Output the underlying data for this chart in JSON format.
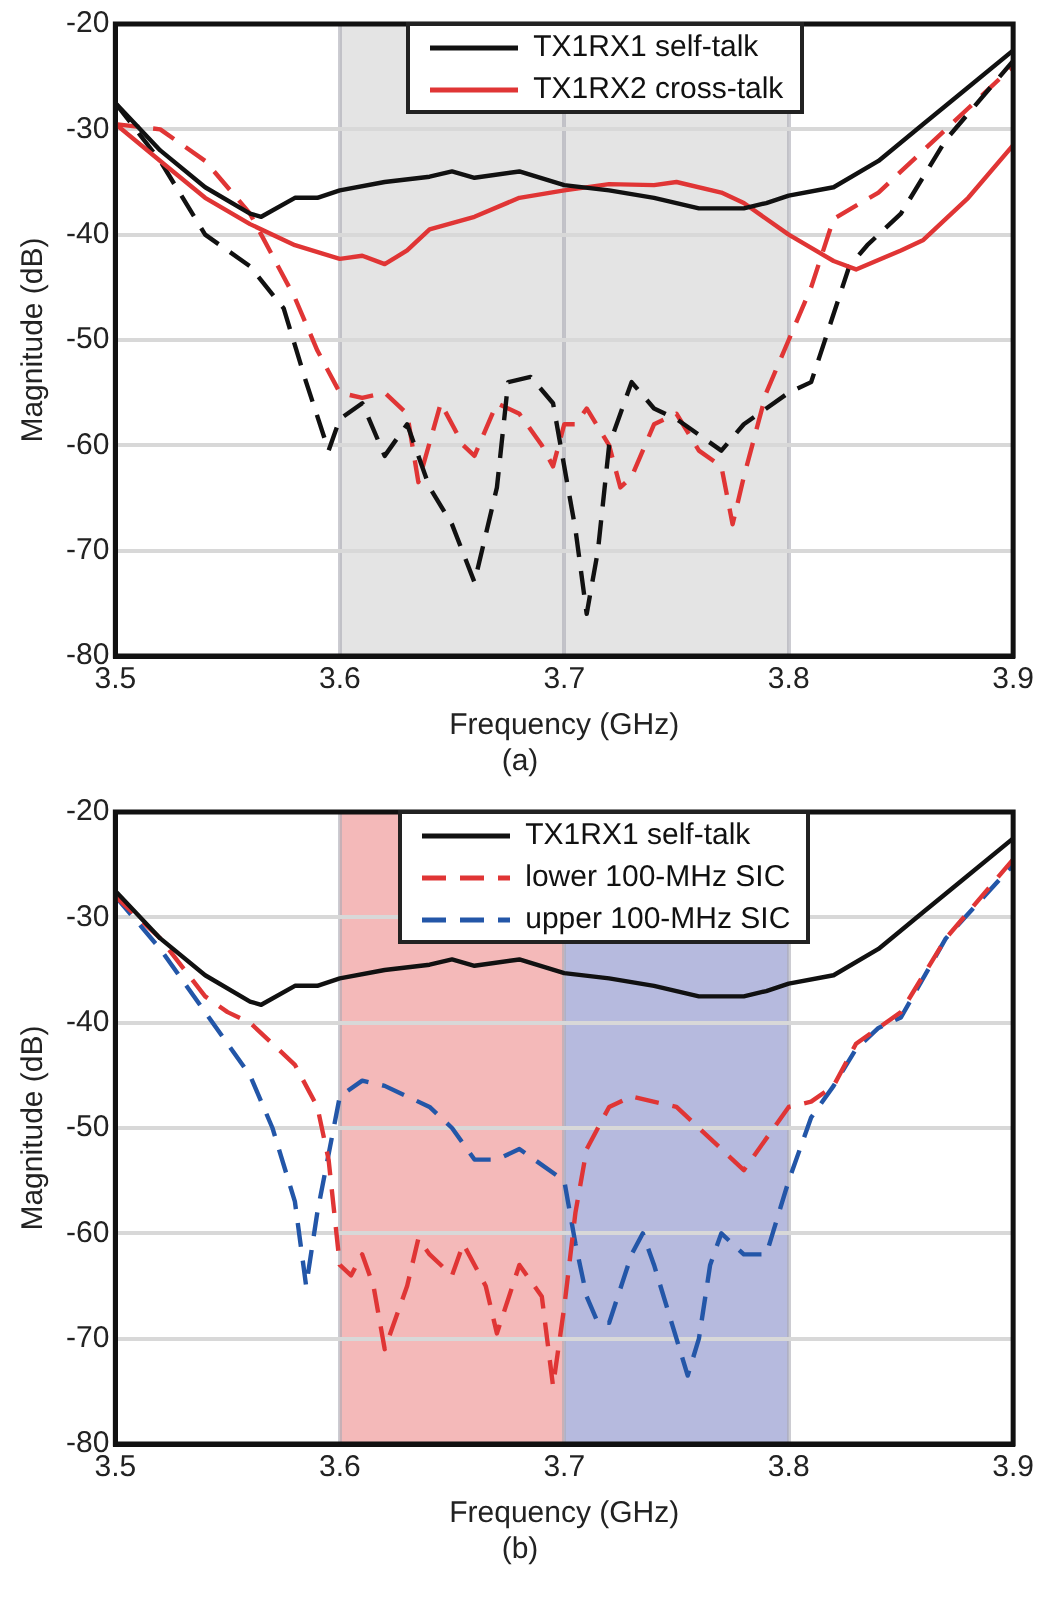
{
  "chart_data": [
    {
      "type": "line",
      "xlabel": "Frequency (GHz)",
      "ylabel": "Magnitude (dB)",
      "annotations": [
        "(a)"
      ],
      "xlim": [
        3.5,
        3.9
      ],
      "xticks": [
        3.5,
        3.6,
        3.7,
        3.8,
        3.9
      ],
      "ylim": [
        -80,
        -20
      ],
      "yticks": [
        -80,
        -70,
        -60,
        -50,
        -40,
        -30,
        -20
      ],
      "grid": true,
      "legend": "top",
      "marker": "none",
      "bands": [
        {
          "axis": "x",
          "from": 3.6,
          "to": 3.7,
          "color": "#e4e4e4"
        },
        {
          "axis": "x",
          "from": 3.7,
          "to": 3.8,
          "color": "#e4e4e4"
        }
      ],
      "series": [
        {
          "name": "TX1RX1 self-talk",
          "color": "#111111",
          "line_style": "solid",
          "x": [
            3.5,
            3.52,
            3.54,
            3.56,
            3.565,
            3.58,
            3.59,
            3.6,
            3.62,
            3.64,
            3.65,
            3.66,
            3.68,
            3.7,
            3.72,
            3.74,
            3.76,
            3.78,
            3.79,
            3.8,
            3.82,
            3.84,
            3.86,
            3.88,
            3.9
          ],
          "values": [
            -27.5,
            -32,
            -35.5,
            -38,
            -38.3,
            -36.5,
            -36.5,
            -35.8,
            -35,
            -34.5,
            -34,
            -34.6,
            -34,
            -35.3,
            -35.8,
            -36.5,
            -37.5,
            -37.5,
            -37,
            -36.3,
            -35.5,
            -33,
            -29.5,
            -26,
            -22.5
          ]
        },
        {
          "name": "TX1RX2 cross-talk",
          "color": "#e03535",
          "line_style": "solid",
          "x": [
            3.5,
            3.52,
            3.54,
            3.56,
            3.58,
            3.6,
            3.61,
            3.62,
            3.63,
            3.64,
            3.66,
            3.68,
            3.7,
            3.72,
            3.74,
            3.75,
            3.77,
            3.78,
            3.8,
            3.82,
            3.83,
            3.85,
            3.86,
            3.88,
            3.9
          ],
          "values": [
            -29.5,
            -33,
            -36.5,
            -39,
            -41,
            -42.3,
            -42,
            -42.8,
            -41.5,
            -39.5,
            -38.3,
            -36.5,
            -35.8,
            -35.2,
            -35.3,
            -35,
            -36,
            -37,
            -40,
            -42.5,
            -43.3,
            -41.5,
            -40.5,
            -36.5,
            -31.5
          ]
        },
        {
          "color": "#111111",
          "line_style": "dashed",
          "x": [
            3.5,
            3.52,
            3.54,
            3.56,
            3.575,
            3.585,
            3.595,
            3.6,
            3.61,
            3.62,
            3.63,
            3.64,
            3.65,
            3.66,
            3.67,
            3.675,
            3.685,
            3.695,
            3.705,
            3.71,
            3.715,
            3.72,
            3.73,
            3.74,
            3.75,
            3.76,
            3.77,
            3.78,
            3.8,
            3.81,
            3.827,
            3.835,
            3.85,
            3.87,
            3.9
          ],
          "values": [
            -27.5,
            -33,
            -40,
            -43,
            -47,
            -54,
            -60.5,
            -57.5,
            -56,
            -61,
            -58,
            -64,
            -67.5,
            -73,
            -64,
            -54,
            -53.5,
            -56,
            -68,
            -76,
            -70,
            -60,
            -54,
            -56.5,
            -57.5,
            -59,
            -60.5,
            -58,
            -55,
            -54,
            -43,
            -41,
            -38,
            -31,
            -23.5
          ]
        },
        {
          "color": "#e03535",
          "line_style": "dashed",
          "x": [
            3.5,
            3.52,
            3.54,
            3.56,
            3.57,
            3.58,
            3.59,
            3.6,
            3.61,
            3.62,
            3.63,
            3.635,
            3.645,
            3.655,
            3.66,
            3.67,
            3.68,
            3.69,
            3.695,
            3.7,
            3.705,
            3.71,
            3.72,
            3.725,
            3.73,
            3.74,
            3.75,
            3.76,
            3.77,
            3.775,
            3.78,
            3.79,
            3.8,
            3.81,
            3.82,
            3.84,
            3.86,
            3.88,
            3.9
          ],
          "values": [
            -29.5,
            -30,
            -33,
            -38,
            -42,
            -46,
            -51,
            -55,
            -55.5,
            -55,
            -57,
            -63.5,
            -56,
            -60,
            -61,
            -56,
            -57,
            -60,
            -62,
            -58,
            -58,
            -56.5,
            -60,
            -64,
            -63,
            -58,
            -57,
            -60.5,
            -62,
            -67.5,
            -63,
            -55,
            -50,
            -45,
            -38.5,
            -36,
            -32,
            -28,
            -24
          ]
        }
      ]
    },
    {
      "type": "line",
      "xlabel": "Frequency (GHz)",
      "ylabel": "Magnitude (dB)",
      "annotations": [
        "(b)"
      ],
      "xlim": [
        3.5,
        3.9
      ],
      "xticks": [
        3.5,
        3.6,
        3.7,
        3.8,
        3.9
      ],
      "ylim": [
        -80,
        -20
      ],
      "yticks": [
        -80,
        -70,
        -60,
        -50,
        -40,
        -30,
        -20
      ],
      "grid": true,
      "legend": "top",
      "marker": "none",
      "bands": [
        {
          "axis": "x",
          "from": 3.6,
          "to": 3.7,
          "color": "#f4b9b9"
        },
        {
          "axis": "x",
          "from": 3.7,
          "to": 3.8,
          "color": "#b6bade"
        }
      ],
      "series": [
        {
          "name": "TX1RX1 self-talk",
          "color": "#111111",
          "line_style": "solid",
          "x": [
            3.5,
            3.52,
            3.54,
            3.56,
            3.565,
            3.58,
            3.59,
            3.6,
            3.62,
            3.64,
            3.65,
            3.66,
            3.68,
            3.7,
            3.72,
            3.74,
            3.76,
            3.78,
            3.79,
            3.8,
            3.82,
            3.84,
            3.86,
            3.88,
            3.9
          ],
          "values": [
            -27.5,
            -32,
            -35.5,
            -38,
            -38.3,
            -36.5,
            -36.5,
            -35.8,
            -35,
            -34.5,
            -34,
            -34.6,
            -34,
            -35.3,
            -35.8,
            -36.5,
            -37.5,
            -37.5,
            -37,
            -36.3,
            -35.5,
            -33,
            -29.5,
            -26,
            -22.5
          ]
        },
        {
          "name": "lower 100-MHz SIC",
          "color": "#e03535",
          "line_style": "dashed",
          "x": [
            3.5,
            3.52,
            3.54,
            3.55,
            3.56,
            3.57,
            3.58,
            3.59,
            3.595,
            3.6,
            3.605,
            3.61,
            3.615,
            3.62,
            3.63,
            3.635,
            3.64,
            3.65,
            3.655,
            3.665,
            3.67,
            3.68,
            3.69,
            3.695,
            3.7,
            3.705,
            3.71,
            3.72,
            3.73,
            3.75,
            3.76,
            3.77,
            3.78,
            3.8,
            3.81,
            3.82,
            3.83,
            3.84,
            3.85,
            3.87,
            3.9
          ],
          "values": [
            -28,
            -32,
            -37.5,
            -39,
            -40,
            -42,
            -44,
            -48,
            -53,
            -63,
            -64,
            -62,
            -65,
            -71,
            -65,
            -60.5,
            -62,
            -64,
            -61,
            -65,
            -69.5,
            -63,
            -66,
            -74.5,
            -67,
            -58,
            -52,
            -48,
            -47,
            -48,
            -50,
            -52,
            -54,
            -48,
            -47.5,
            -46,
            -42,
            -40.5,
            -39,
            -32,
            -24.5
          ]
        },
        {
          "name": "upper 100-MHz SIC",
          "color": "#2356a8",
          "line_style": "dashed",
          "x": [
            3.5,
            3.52,
            3.54,
            3.56,
            3.57,
            3.58,
            3.585,
            3.59,
            3.6,
            3.61,
            3.62,
            3.63,
            3.64,
            3.65,
            3.66,
            3.67,
            3.68,
            3.7,
            3.705,
            3.71,
            3.715,
            3.72,
            3.73,
            3.735,
            3.74,
            3.75,
            3.755,
            3.76,
            3.765,
            3.77,
            3.78,
            3.79,
            3.8,
            3.81,
            3.82,
            3.83,
            3.84,
            3.85,
            3.87,
            3.9
          ],
          "values": [
            -28,
            -33,
            -39,
            -45,
            -50,
            -57,
            -65,
            -58,
            -47,
            -45.5,
            -46,
            -47,
            -48,
            -50,
            -53,
            -53,
            -52,
            -55,
            -61,
            -66,
            -68.5,
            -68.5,
            -62,
            -60,
            -63,
            -70,
            -73.5,
            -70,
            -63,
            -60,
            -62,
            -62,
            -55,
            -49,
            -46,
            -42.5,
            -40.5,
            -39.5,
            -32,
            -25
          ]
        }
      ]
    }
  ]
}
